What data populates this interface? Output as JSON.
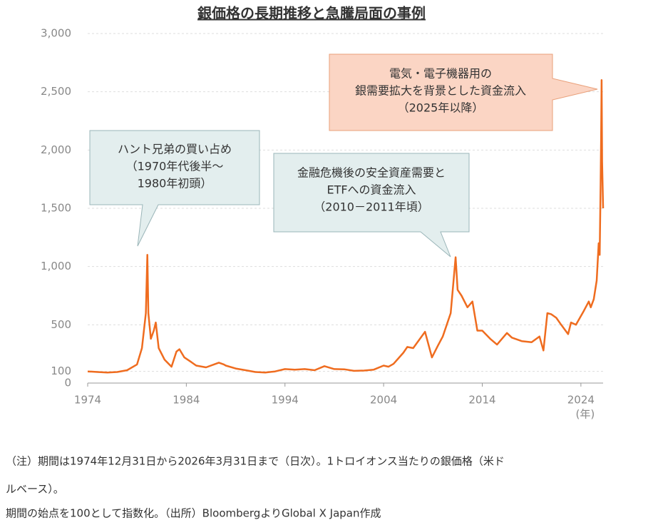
{
  "chart_data": {
    "type": "line",
    "title": "銀価格の長期推移と急騰局面の事例",
    "x_unit_label": "(年)",
    "color": "#ef6c1f",
    "grid": true,
    "xlim": [
      1974,
      2026.25
    ],
    "xticks": [
      1974,
      1984,
      1994,
      2004,
      2014,
      2024
    ],
    "ylim": [
      0,
      3000
    ],
    "yticks": [
      0,
      100,
      500,
      {
        "value": 1000,
        "label": "1,000"
      },
      {
        "value": 1500,
        "label": "1,500"
      },
      {
        "value": 2000,
        "label": "2,000"
      },
      {
        "value": 2500,
        "label": "2,500"
      },
      {
        "value": 3000,
        "label": "3,000"
      }
    ],
    "x": [
      1974.0,
      1975,
      1976,
      1977,
      1978,
      1979,
      1979.5,
      1979.9,
      1980.05,
      1980.15,
      1980.4,
      1980.7,
      1980.9,
      1981.2,
      1981.8,
      1982.5,
      1983.0,
      1983.3,
      1983.8,
      1984.5,
      1985,
      1986,
      1987.3,
      1987.8,
      1988,
      1989,
      1990,
      1991,
      1992,
      1993,
      1994,
      1995,
      1996,
      1997,
      1998,
      1999,
      2000,
      2001,
      2002,
      2003,
      2004,
      2004.5,
      2005,
      2006,
      2006.4,
      2007,
      2008.2,
      2008.9,
      2009.5,
      2010,
      2010.8,
      2011.3,
      2011.5,
      2011.9,
      2012.5,
      2013,
      2013.5,
      2014,
      2014.8,
      2015.5,
      2016.5,
      2017,
      2018,
      2019,
      2019.8,
      2020.2,
      2020.6,
      2021,
      2021.5,
      2022,
      2022.7,
      2023,
      2023.5,
      2024.3,
      2024.8,
      2025,
      2025.3,
      2025.6,
      2025.8,
      2025.9,
      2026.0,
      2026.05,
      2026.1,
      2026.15,
      2026.25
    ],
    "values": [
      100,
      95,
      90,
      95,
      110,
      160,
      300,
      600,
      1100,
      600,
      380,
      450,
      520,
      300,
      200,
      140,
      270,
      290,
      220,
      180,
      150,
      135,
      175,
      160,
      150,
      125,
      110,
      95,
      90,
      100,
      120,
      115,
      120,
      110,
      145,
      120,
      118,
      105,
      107,
      115,
      150,
      140,
      165,
      260,
      310,
      300,
      440,
      220,
      320,
      400,
      600,
      1080,
      800,
      750,
      650,
      700,
      450,
      450,
      380,
      330,
      430,
      390,
      360,
      350,
      400,
      280,
      600,
      590,
      560,
      500,
      420,
      520,
      500,
      620,
      700,
      650,
      720,
      880,
      1200,
      1100,
      1700,
      2100,
      2600,
      1900,
      1500
    ],
    "annotations": [
      {
        "lines": [
          "ハント兄弟の買い占め",
          "（1970年代後半～",
          "1980年初頭）"
        ]
      },
      {
        "lines": [
          "金融危機後の安全資産需要と",
          "ETFへの資金流入",
          "（2010－2011年頃）"
        ]
      },
      {
        "lines": [
          "電気・電子機器用の",
          "銀需要拡大を背景とした資金流入",
          "（2025年以降）"
        ]
      }
    ]
  },
  "notes": [
    "（注）期間は1974年12月31日から2026年3月31日まで（日次）。1トロイオンス当たりの銀価格（米ド",
    "ルベース）。",
    "期間の始点を100として指数化。（出所）BloombergよりGlobal X Japan作成"
  ]
}
